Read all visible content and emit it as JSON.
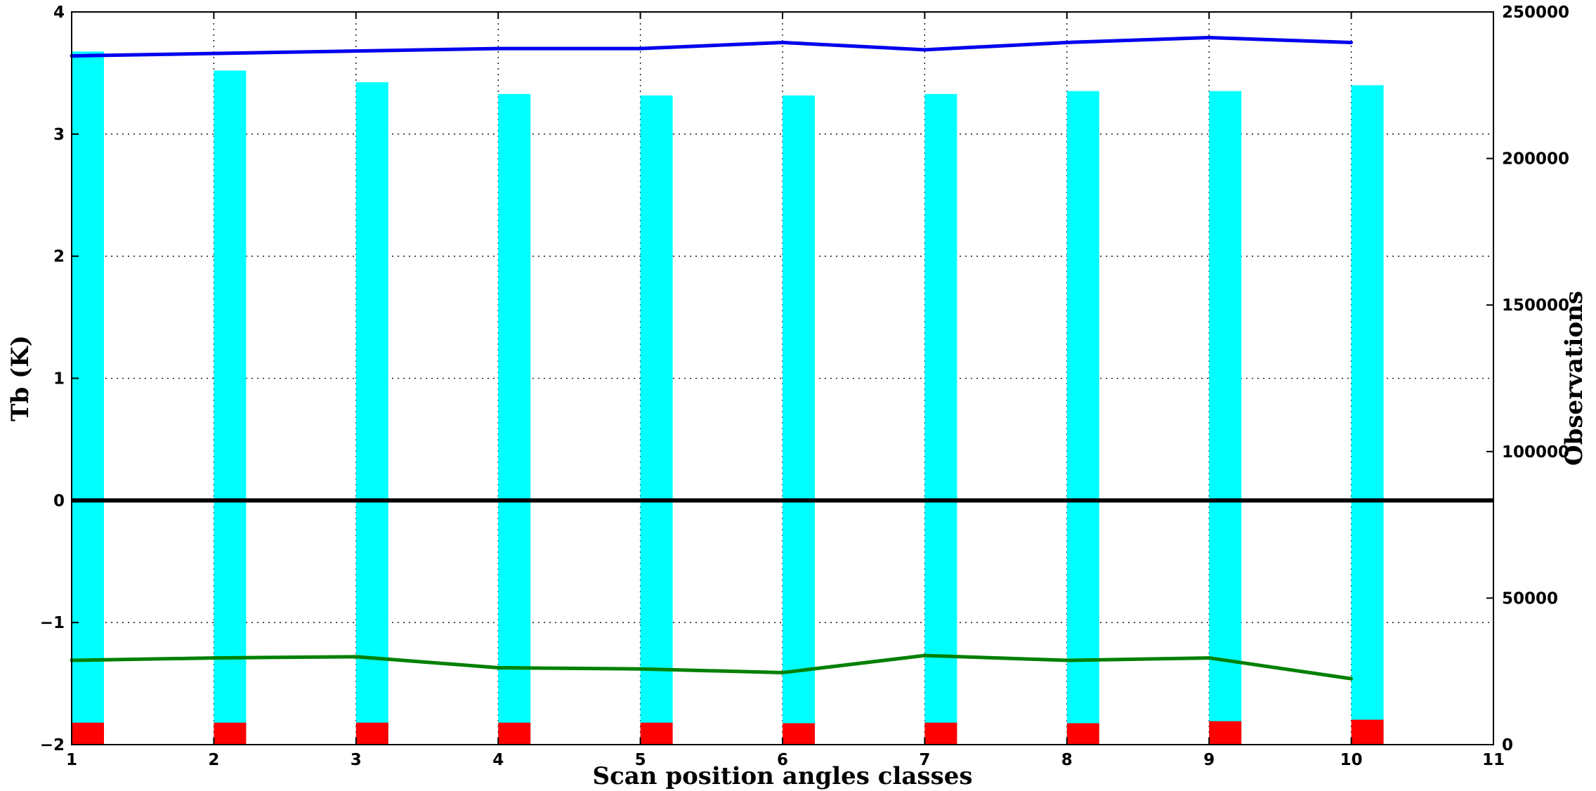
{
  "chart_data": {
    "type": "bar",
    "xlabel": "Scan position angles classes",
    "ylabel_left": "Tb (K)",
    "ylabel_right": "Observations",
    "xlim": [
      1,
      11
    ],
    "ylim_left": [
      -2,
      4
    ],
    "ylim_right": [
      0,
      250000
    ],
    "x_ticks": [
      1,
      2,
      3,
      4,
      5,
      6,
      7,
      8,
      9,
      10,
      11
    ],
    "y_ticks_left": [
      -2,
      -1,
      0,
      1,
      2,
      3,
      4
    ],
    "y_tick_labels_left": [
      "−2",
      "−1",
      "0",
      "1",
      "2",
      "3",
      "4"
    ],
    "y_ticks_right": [
      0,
      50000,
      100000,
      150000,
      200000,
      250000
    ],
    "grid": true,
    "x": [
      1,
      2,
      3,
      4,
      5,
      6,
      7,
      8,
      9,
      10
    ],
    "bar_series": [
      {
        "axis": "right",
        "color": "#00ffff",
        "values": [
          236500,
          230000,
          226000,
          222000,
          221500,
          221500,
          222000,
          223000,
          223000,
          225000
        ]
      },
      {
        "axis": "right",
        "color": "#ff0000",
        "values": [
          7500,
          7500,
          7500,
          7500,
          7500,
          7300,
          7500,
          7300,
          8000,
          8500
        ]
      }
    ],
    "line_series": [
      {
        "axis": "left",
        "color": "#0000ee",
        "values": [
          3.64,
          3.66,
          3.68,
          3.7,
          3.7,
          3.75,
          3.69,
          3.75,
          3.79,
          3.75
        ]
      },
      {
        "axis": "left",
        "color": "#008000",
        "values": [
          -1.31,
          -1.29,
          -1.28,
          -1.37,
          -1.38,
          -1.41,
          -1.27,
          -1.31,
          -1.29,
          -1.46
        ]
      }
    ],
    "reference_line": {
      "axis": "left",
      "y": 0,
      "color": "#000000"
    }
  }
}
